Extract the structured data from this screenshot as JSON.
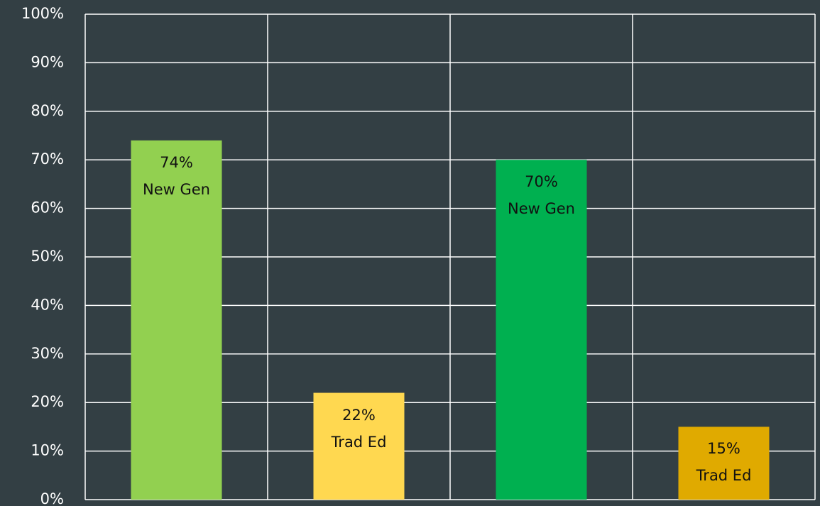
{
  "chart_data": {
    "type": "bar",
    "categories": [
      null,
      null,
      null,
      null
    ],
    "values": [
      74,
      22,
      70,
      15
    ],
    "value_labels": [
      "74%",
      "22%",
      "70%",
      "15%"
    ],
    "bar_labels": [
      "New Gen",
      "Trad Ed",
      "New Gen",
      "Trad Ed"
    ],
    "colors": [
      "#92d050",
      "#ffd850",
      "#00b050",
      "#e0aa00"
    ],
    "ylim": [
      0,
      100
    ],
    "yticks": [
      {
        "value": 0,
        "label": "0%"
      },
      {
        "value": 10,
        "label": "10%"
      },
      {
        "value": 20,
        "label": "20%"
      },
      {
        "value": 30,
        "label": "30%"
      },
      {
        "value": 40,
        "label": "40%"
      },
      {
        "value": 50,
        "label": "50%"
      },
      {
        "value": 60,
        "label": "60%"
      },
      {
        "value": 70,
        "label": "70%"
      },
      {
        "value": 80,
        "label": "80%"
      },
      {
        "value": 90,
        "label": "90%"
      },
      {
        "value": 100,
        "label": "100%"
      }
    ],
    "grid": true
  }
}
